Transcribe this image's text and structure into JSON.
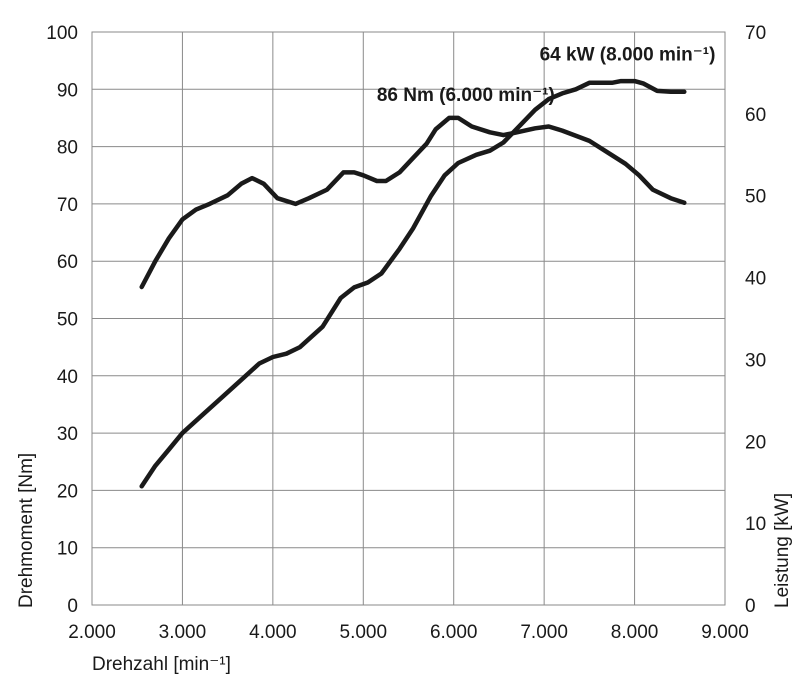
{
  "chart_data": {
    "type": "line",
    "xlabel": "Drehzahl [min⁻¹]",
    "ylabel_left": "Drehmoment [Nm]",
    "ylabel_right": "Leistung [kW]",
    "xlim": [
      2000,
      9000
    ],
    "ylim_left": [
      0,
      100
    ],
    "ylim_right": [
      0,
      70
    ],
    "x_ticks": [
      2000,
      3000,
      4000,
      5000,
      6000,
      7000,
      8000,
      9000
    ],
    "x_tick_labels": [
      "2.000",
      "3.000",
      "4.000",
      "5.000",
      "6.000",
      "7.000",
      "8.000",
      "9.000"
    ],
    "y_ticks_left": [
      0,
      10,
      20,
      30,
      40,
      50,
      60,
      70,
      80,
      90,
      100
    ],
    "y_ticks_left_labels": [
      "0",
      "10",
      "20",
      "30",
      "40",
      "50",
      "60",
      "70",
      "80",
      "90",
      "100"
    ],
    "y_ticks_right": [
      0,
      10,
      20,
      30,
      40,
      50,
      60,
      70
    ],
    "y_ticks_right_labels": [
      "0",
      "10",
      "20",
      "30",
      "40",
      "50",
      "60",
      "70"
    ],
    "grid": true,
    "series": [
      {
        "axis": "left",
        "points": [
          [
            2550,
            55.5
          ],
          [
            2700,
            60
          ],
          [
            2850,
            64
          ],
          [
            3000,
            67.3
          ],
          [
            3150,
            69
          ],
          [
            3300,
            70
          ],
          [
            3500,
            71.5
          ],
          [
            3650,
            73.5
          ],
          [
            3770,
            74.5
          ],
          [
            3900,
            73.5
          ],
          [
            4050,
            71
          ],
          [
            4250,
            70
          ],
          [
            4400,
            71
          ],
          [
            4600,
            72.5
          ],
          [
            4780,
            75.5
          ],
          [
            4900,
            75.5
          ],
          [
            5000,
            75
          ],
          [
            5150,
            74
          ],
          [
            5250,
            74
          ],
          [
            5400,
            75.5
          ],
          [
            5550,
            78
          ],
          [
            5700,
            80.5
          ],
          [
            5800,
            83
          ],
          [
            5950,
            85
          ],
          [
            6050,
            85
          ],
          [
            6200,
            83.5
          ],
          [
            6400,
            82.5
          ],
          [
            6550,
            82
          ],
          [
            6700,
            82.5
          ],
          [
            6900,
            83.2
          ],
          [
            7050,
            83.5
          ],
          [
            7200,
            82.8
          ],
          [
            7500,
            81
          ],
          [
            7700,
            79
          ],
          [
            7900,
            77
          ],
          [
            8050,
            75
          ],
          [
            8200,
            72.5
          ],
          [
            8400,
            71
          ],
          [
            8550,
            70.2
          ]
        ]
      },
      {
        "axis": "right",
        "points": [
          [
            2550,
            14.5
          ],
          [
            2700,
            17
          ],
          [
            2850,
            19
          ],
          [
            3000,
            21
          ],
          [
            3200,
            23
          ],
          [
            3450,
            25.5
          ],
          [
            3650,
            27.5
          ],
          [
            3850,
            29.5
          ],
          [
            4000,
            30.3
          ],
          [
            4150,
            30.7
          ],
          [
            4300,
            31.5
          ],
          [
            4550,
            34
          ],
          [
            4750,
            37.5
          ],
          [
            4900,
            38.8
          ],
          [
            5050,
            39.4
          ],
          [
            5200,
            40.5
          ],
          [
            5400,
            43.5
          ],
          [
            5550,
            46
          ],
          [
            5750,
            50
          ],
          [
            5900,
            52.5
          ],
          [
            6050,
            54
          ],
          [
            6250,
            55
          ],
          [
            6400,
            55.5
          ],
          [
            6550,
            56.5
          ],
          [
            6700,
            58.2
          ],
          [
            6900,
            60.5
          ],
          [
            7050,
            61.8
          ],
          [
            7200,
            62.5
          ],
          [
            7350,
            63
          ],
          [
            7500,
            63.8
          ],
          [
            7750,
            63.8
          ],
          [
            7850,
            64
          ],
          [
            8000,
            64
          ],
          [
            8100,
            63.7
          ],
          [
            8250,
            62.8
          ],
          [
            8400,
            62.7
          ],
          [
            8550,
            62.7
          ]
        ]
      }
    ],
    "annotations": [
      {
        "text": "86 Nm (6.000 min⁻¹)",
        "x": 5150,
        "y": 88
      },
      {
        "text": "64 kW (8.000 min⁻¹)",
        "x": 6950,
        "y": 95
      }
    ]
  }
}
